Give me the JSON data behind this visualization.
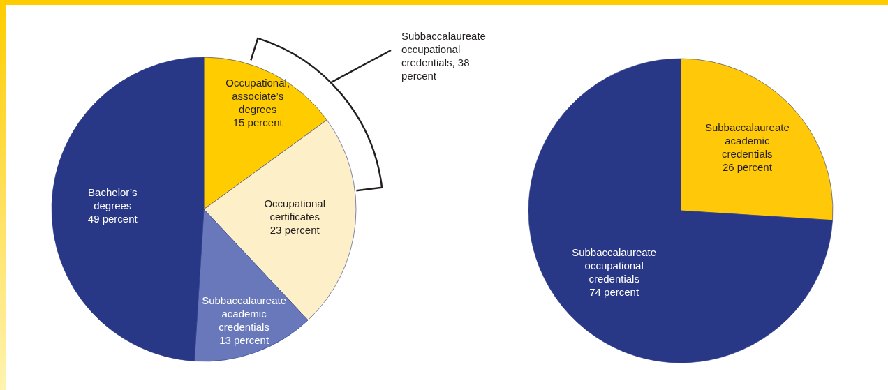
{
  "chart_data": [
    {
      "type": "pie",
      "categories": [
        "Occupational, associate’s degrees",
        "Occupational certificates",
        "Subbaccalaureate academic credentials",
        "Bachelor’s degrees"
      ],
      "values": [
        15,
        23,
        13,
        49
      ],
      "colors": [
        "#ffcc00",
        "#fdf0c8",
        "#6878bb",
        "#283887"
      ],
      "value_labels": [
        "15 percent",
        "23 percent",
        "13 percent",
        "49 percent"
      ],
      "annotations": [
        "Subbaccalaureate occupational credentials, 38 percent"
      ]
    },
    {
      "type": "pie",
      "categories": [
        "Subbaccalaureate academic credentials",
        "Subbaccalaureate occupational credentials"
      ],
      "values": [
        26,
        74
      ],
      "colors": [
        "#ffc90a",
        "#283887"
      ],
      "value_labels": [
        "26 percent",
        "74 percent"
      ]
    }
  ]
}
